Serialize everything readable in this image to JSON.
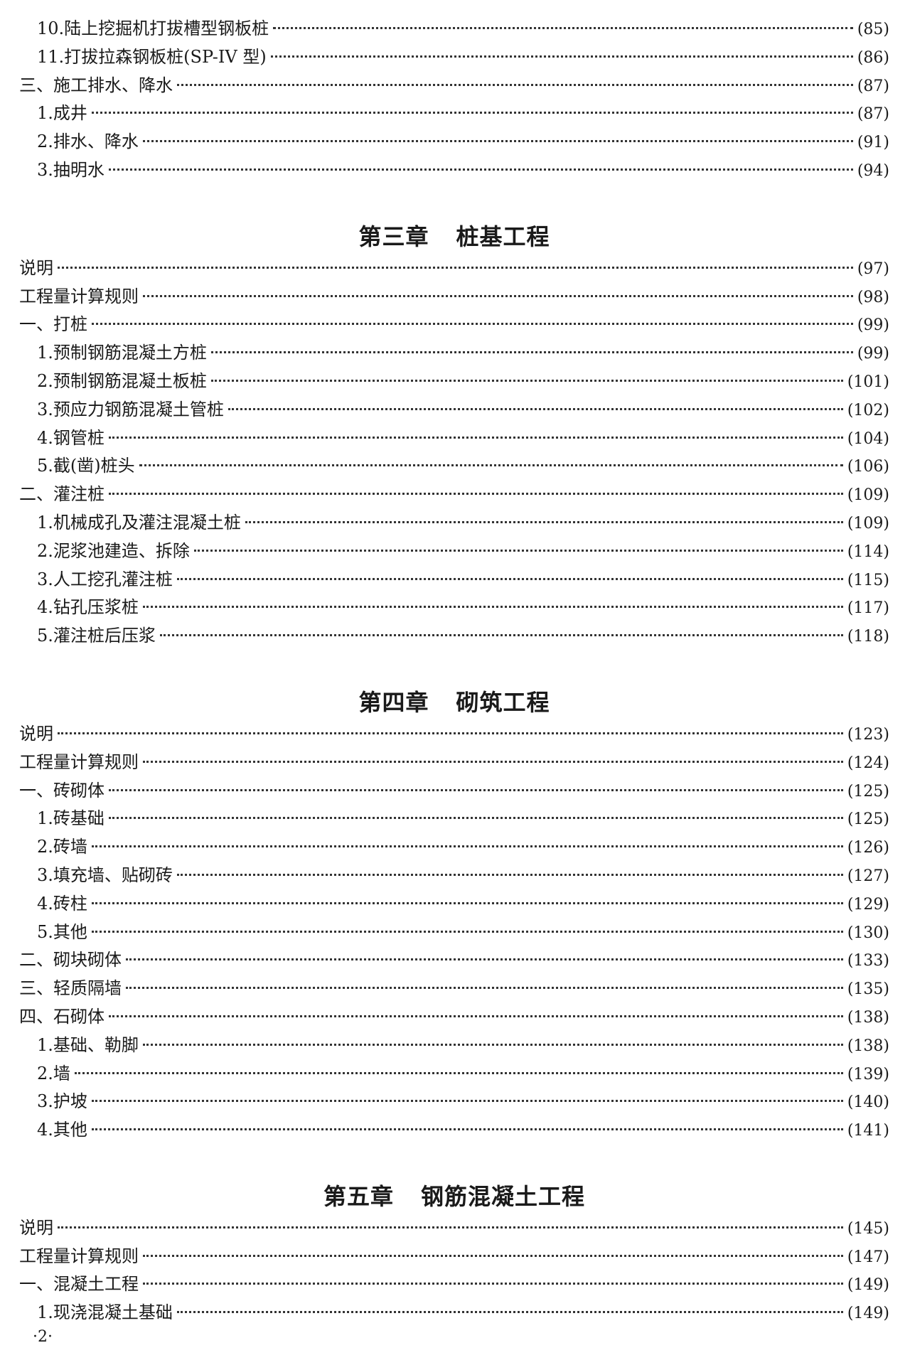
{
  "sections": [
    {
      "title": null,
      "entries": [
        {
          "label": "10.陆上挖掘机打拔槽型钢板桩",
          "page": "(85)",
          "level": 2
        },
        {
          "label": "11.打拔拉森钢板桩(SP-IV 型)",
          "page": "(86)",
          "level": 2
        },
        {
          "label": "三、施工排水、降水",
          "page": "(87)",
          "level": 1
        },
        {
          "label": "1.成井",
          "page": "(87)",
          "level": 2
        },
        {
          "label": "2.排水、降水",
          "page": "(91)",
          "level": 2
        },
        {
          "label": "3.抽明水",
          "page": "(94)",
          "level": 2
        }
      ]
    },
    {
      "title": {
        "chapter": "第三章",
        "name": "桩基工程"
      },
      "entries": [
        {
          "label": "说明",
          "page": "(97)",
          "level": 1
        },
        {
          "label": "工程量计算规则",
          "page": "(98)",
          "level": 1
        },
        {
          "label": "一、打桩",
          "page": "(99)",
          "level": 1
        },
        {
          "label": "1.预制钢筋混凝土方桩",
          "page": "(99)",
          "level": 2
        },
        {
          "label": "2.预制钢筋混凝土板桩",
          "page": "(101)",
          "level": 2
        },
        {
          "label": "3.预应力钢筋混凝土管桩",
          "page": "(102)",
          "level": 2
        },
        {
          "label": "4.钢管桩",
          "page": "(104)",
          "level": 2
        },
        {
          "label": "5.截(凿)桩头",
          "page": "(106)",
          "level": 2
        },
        {
          "label": "二、灌注桩",
          "page": "(109)",
          "level": 1
        },
        {
          "label": "1.机械成孔及灌注混凝土桩",
          "page": "(109)",
          "level": 2
        },
        {
          "label": "2.泥浆池建造、拆除",
          "page": "(114)",
          "level": 2
        },
        {
          "label": "3.人工挖孔灌注桩",
          "page": "(115)",
          "level": 2
        },
        {
          "label": "4.钻孔压浆桩",
          "page": "(117)",
          "level": 2
        },
        {
          "label": "5.灌注桩后压浆",
          "page": "(118)",
          "level": 2
        }
      ]
    },
    {
      "title": {
        "chapter": "第四章",
        "name": "砌筑工程"
      },
      "entries": [
        {
          "label": "说明",
          "page": "(123)",
          "level": 1
        },
        {
          "label": "工程量计算规则",
          "page": "(124)",
          "level": 1
        },
        {
          "label": "一、砖砌体",
          "page": "(125)",
          "level": 1
        },
        {
          "label": "1.砖基础",
          "page": "(125)",
          "level": 2
        },
        {
          "label": "2.砖墙",
          "page": "(126)",
          "level": 2
        },
        {
          "label": "3.填充墙、贴砌砖",
          "page": "(127)",
          "level": 2
        },
        {
          "label": "4.砖柱",
          "page": "(129)",
          "level": 2
        },
        {
          "label": "5.其他",
          "page": "(130)",
          "level": 2
        },
        {
          "label": "二、砌块砌体",
          "page": "(133)",
          "level": 1
        },
        {
          "label": "三、轻质隔墙",
          "page": "(135)",
          "level": 1
        },
        {
          "label": "四、石砌体",
          "page": "(138)",
          "level": 1
        },
        {
          "label": "1.基础、勒脚",
          "page": "(138)",
          "level": 2
        },
        {
          "label": "2.墙",
          "page": "(139)",
          "level": 2
        },
        {
          "label": "3.护坡",
          "page": "(140)",
          "level": 2
        },
        {
          "label": "4.其他",
          "page": "(141)",
          "level": 2
        }
      ]
    },
    {
      "title": {
        "chapter": "第五章",
        "name": "钢筋混凝土工程"
      },
      "entries": [
        {
          "label": "说明",
          "page": "(145)",
          "level": 1
        },
        {
          "label": "工程量计算规则",
          "page": "(147)",
          "level": 1
        },
        {
          "label": "一、混凝土工程",
          "page": "(149)",
          "level": 1
        },
        {
          "label": "1.现浇混凝土基础",
          "page": "(149)",
          "level": 2
        }
      ]
    }
  ],
  "page_number": "·2·"
}
